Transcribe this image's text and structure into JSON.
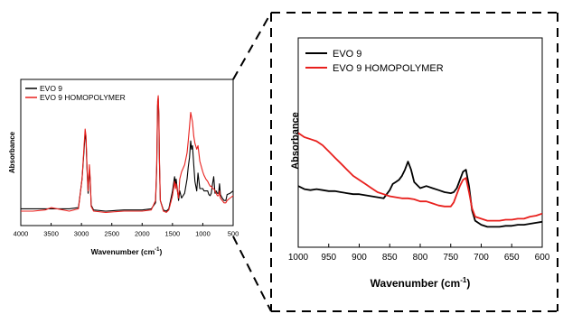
{
  "colors": {
    "evo9": "#000000",
    "homopolymer": "#e8201d",
    "frame": "#000000"
  },
  "chart_data": [
    {
      "type": "line",
      "xlabel": "Wavenumber (cm",
      "xlabel_sup": "-1",
      "xlabel_tail": ")",
      "ylabel": "Absorbance",
      "xlim": [
        4000,
        500
      ],
      "ylim": [
        0,
        1
      ],
      "x_reversed": true,
      "y_ticks_shown": false,
      "x_ticks": [
        "4000",
        "3500",
        "3000",
        "2500",
        "2000",
        "1500",
        "1000",
        "500"
      ],
      "legend": {
        "placement": "top-left"
      },
      "series": [
        {
          "name": "EVO 9",
          "color": "#000000",
          "x": [
            4000,
            3800,
            3600,
            3500,
            3400,
            3200,
            3050,
            2990,
            2960,
            2940,
            2925,
            2910,
            2890,
            2870,
            2855,
            2840,
            2800,
            2600,
            2300,
            2000,
            1850,
            1780,
            1760,
            1745,
            1735,
            1725,
            1715,
            1700,
            1650,
            1600,
            1560,
            1500,
            1465,
            1450,
            1440,
            1400,
            1380,
            1350,
            1300,
            1260,
            1240,
            1220,
            1200,
            1185,
            1170,
            1150,
            1130,
            1100,
            1080,
            1050,
            1000,
            980,
            950,
            920,
            900,
            880,
            860,
            840,
            820,
            800,
            780,
            760,
            740,
            725,
            710,
            680,
            650,
            620,
            600,
            550,
            500
          ],
          "y": [
            0.05,
            0.05,
            0.05,
            0.05,
            0.05,
            0.05,
            0.06,
            0.3,
            0.52,
            0.68,
            0.63,
            0.4,
            0.18,
            0.38,
            0.28,
            0.08,
            0.04,
            0.03,
            0.04,
            0.04,
            0.05,
            0.1,
            0.38,
            0.92,
            0.98,
            0.82,
            0.45,
            0.12,
            0.04,
            0.03,
            0.05,
            0.2,
            0.32,
            0.25,
            0.3,
            0.12,
            0.2,
            0.14,
            0.18,
            0.3,
            0.4,
            0.48,
            0.62,
            0.55,
            0.58,
            0.42,
            0.28,
            0.2,
            0.35,
            0.22,
            0.22,
            0.2,
            0.2,
            0.2,
            0.17,
            0.16,
            0.18,
            0.26,
            0.32,
            0.18,
            0.2,
            0.18,
            0.18,
            0.26,
            0.17,
            0.14,
            0.12,
            0.12,
            0.17,
            0.18,
            0.2
          ]
        },
        {
          "name": "EVO 9 HOMOPOLYMER",
          "color": "#e8201d",
          "x": [
            4000,
            3800,
            3600,
            3500,
            3400,
            3200,
            3050,
            2990,
            2960,
            2940,
            2925,
            2910,
            2890,
            2870,
            2855,
            2840,
            2800,
            2600,
            2300,
            2000,
            1850,
            1780,
            1760,
            1745,
            1735,
            1725,
            1715,
            1700,
            1650,
            1600,
            1560,
            1500,
            1465,
            1450,
            1440,
            1400,
            1380,
            1350,
            1300,
            1260,
            1240,
            1220,
            1200,
            1185,
            1170,
            1150,
            1130,
            1100,
            1080,
            1050,
            1000,
            980,
            950,
            920,
            900,
            880,
            860,
            840,
            820,
            800,
            780,
            760,
            740,
            725,
            710,
            680,
            650,
            620,
            600,
            550,
            500
          ],
          "y": [
            0.03,
            0.03,
            0.04,
            0.06,
            0.05,
            0.03,
            0.05,
            0.3,
            0.55,
            0.72,
            0.66,
            0.42,
            0.2,
            0.42,
            0.3,
            0.07,
            0.03,
            0.02,
            0.03,
            0.03,
            0.04,
            0.12,
            0.42,
            0.95,
            1.0,
            0.85,
            0.48,
            0.12,
            0.03,
            0.02,
            0.04,
            0.16,
            0.28,
            0.22,
            0.26,
            0.14,
            0.3,
            0.36,
            0.42,
            0.52,
            0.62,
            0.74,
            0.86,
            0.82,
            0.78,
            0.66,
            0.6,
            0.55,
            0.58,
            0.45,
            0.36,
            0.33,
            0.3,
            0.28,
            0.26,
            0.24,
            0.24,
            0.22,
            0.22,
            0.2,
            0.18,
            0.16,
            0.16,
            0.2,
            0.14,
            0.12,
            0.1,
            0.1,
            0.12,
            0.14,
            0.16
          ]
        }
      ]
    },
    {
      "type": "line",
      "xlabel": "Wavenumber (cm",
      "xlabel_sup": "-1",
      "xlabel_tail": ")",
      "ylabel": "Absorbance",
      "xlim": [
        1000,
        600
      ],
      "ylim": [
        0,
        1
      ],
      "x_reversed": true,
      "y_ticks_shown": false,
      "x_ticks": [
        "1000",
        "950",
        "900",
        "850",
        "800",
        "750",
        "700",
        "650",
        "600"
      ],
      "legend": {
        "placement": "top-left"
      },
      "series": [
        {
          "name": "EVO 9",
          "color": "#000000",
          "x": [
            1000,
            990,
            980,
            970,
            960,
            950,
            940,
            930,
            920,
            910,
            900,
            890,
            880,
            870,
            860,
            850,
            845,
            840,
            835,
            830,
            825,
            820,
            815,
            810,
            800,
            790,
            780,
            770,
            760,
            750,
            745,
            740,
            735,
            730,
            725,
            720,
            715,
            710,
            700,
            690,
            680,
            670,
            660,
            650,
            640,
            630,
            620,
            610,
            600
          ],
          "y": [
            0.3,
            0.285,
            0.28,
            0.285,
            0.28,
            0.275,
            0.275,
            0.27,
            0.265,
            0.26,
            0.26,
            0.255,
            0.25,
            0.245,
            0.24,
            0.28,
            0.31,
            0.32,
            0.33,
            0.35,
            0.38,
            0.42,
            0.38,
            0.32,
            0.29,
            0.3,
            0.29,
            0.28,
            0.27,
            0.265,
            0.27,
            0.29,
            0.33,
            0.37,
            0.38,
            0.3,
            0.18,
            0.13,
            0.11,
            0.1,
            0.1,
            0.1,
            0.105,
            0.105,
            0.11,
            0.11,
            0.115,
            0.12,
            0.125
          ]
        },
        {
          "name": "EVO 9 HOMOPOLYMER",
          "color": "#e8201d",
          "x": [
            1000,
            990,
            980,
            970,
            960,
            950,
            940,
            930,
            920,
            910,
            900,
            890,
            880,
            870,
            860,
            850,
            840,
            830,
            820,
            810,
            800,
            790,
            780,
            770,
            760,
            750,
            745,
            740,
            735,
            730,
            725,
            720,
            715,
            710,
            700,
            690,
            680,
            670,
            660,
            650,
            640,
            630,
            620,
            610,
            600
          ],
          "y": [
            0.56,
            0.54,
            0.53,
            0.52,
            0.5,
            0.47,
            0.44,
            0.41,
            0.38,
            0.35,
            0.33,
            0.31,
            0.29,
            0.27,
            0.26,
            0.25,
            0.245,
            0.24,
            0.24,
            0.235,
            0.225,
            0.225,
            0.215,
            0.205,
            0.2,
            0.2,
            0.22,
            0.26,
            0.3,
            0.33,
            0.34,
            0.27,
            0.19,
            0.15,
            0.14,
            0.13,
            0.13,
            0.13,
            0.135,
            0.135,
            0.14,
            0.14,
            0.15,
            0.155,
            0.165
          ]
        }
      ]
    }
  ]
}
